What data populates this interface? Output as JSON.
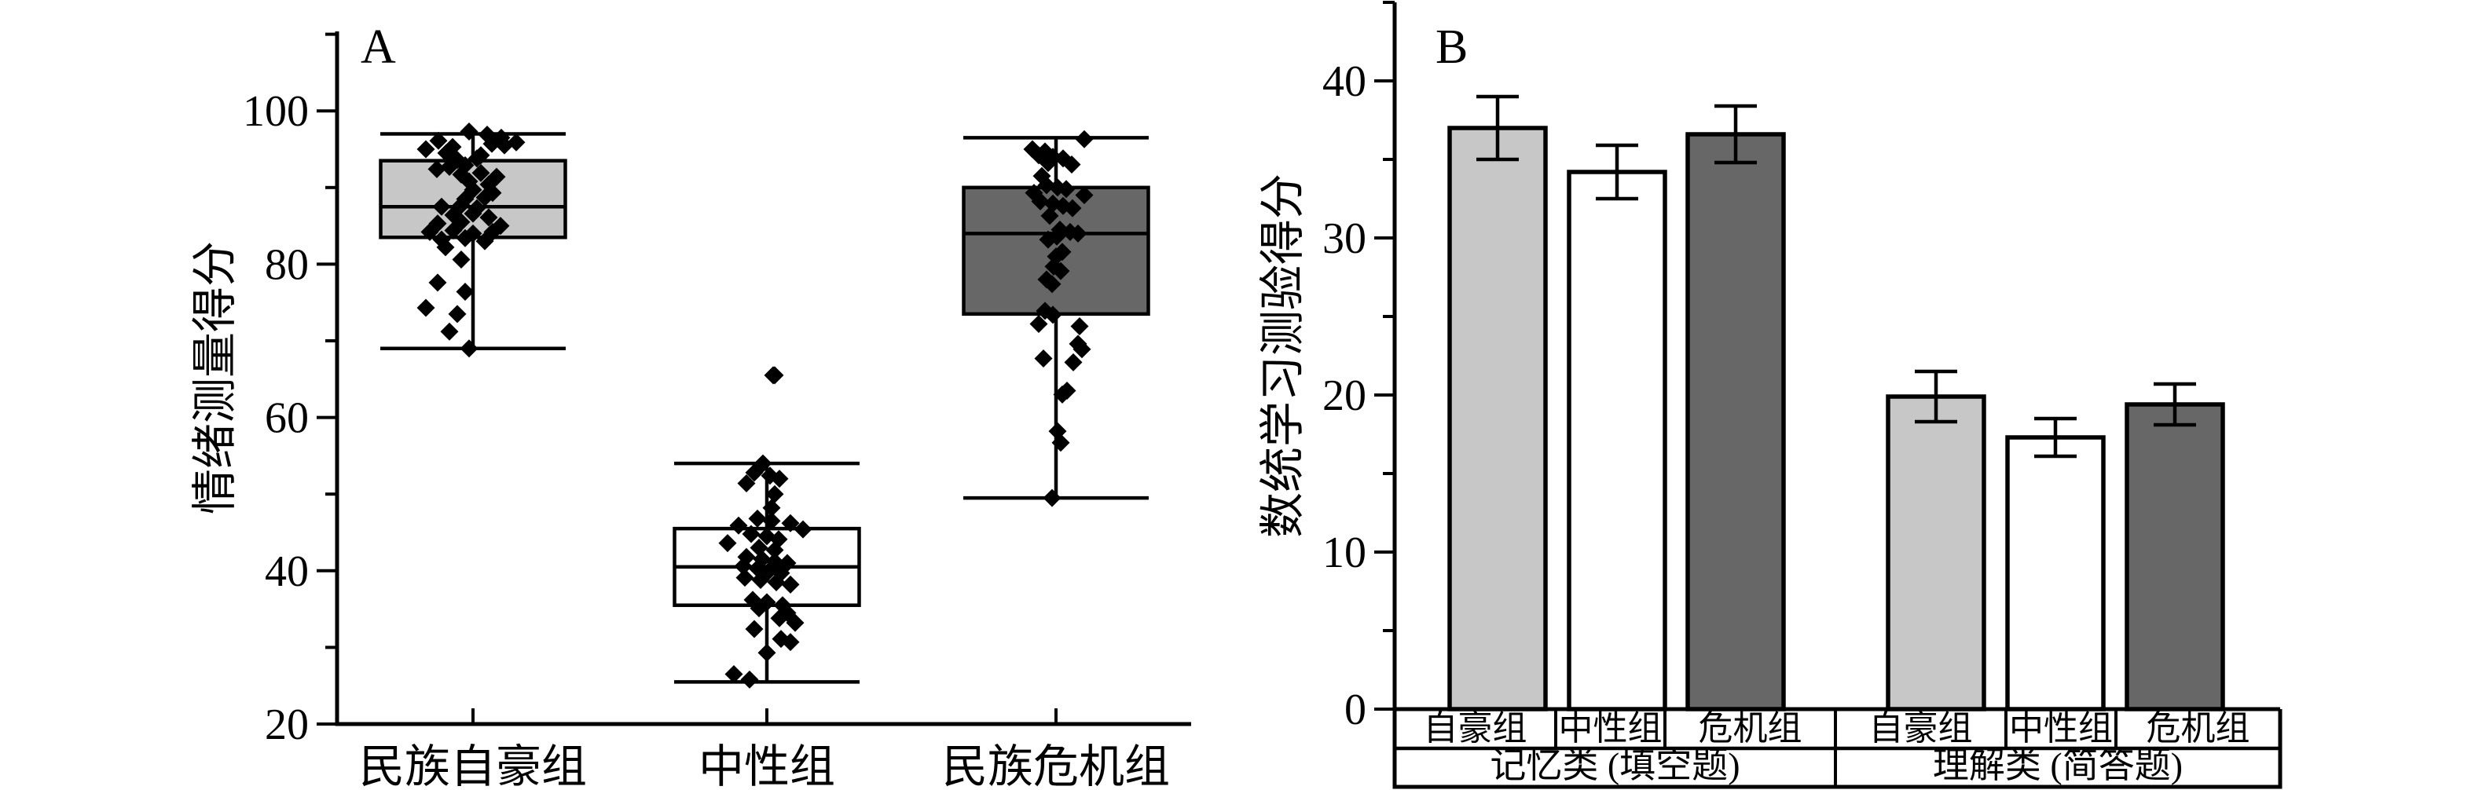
{
  "figure": {
    "background": "#ffffff",
    "stroke_color": "#000000",
    "palette": {
      "light_gray": "#c7c7c7",
      "white": "#ffffff",
      "dark_gray": "#676767"
    }
  },
  "chart_data": [
    {
      "type": "boxplot-scatter",
      "panel_label": "A",
      "title": "",
      "ylabel": "情绪测量得分",
      "xlabel": "",
      "ylim": [
        20,
        110
      ],
      "yticks_major": [
        20,
        40,
        60,
        80,
        100
      ],
      "yticks_minor": [
        30,
        50,
        70,
        90,
        110
      ],
      "grid": false,
      "categories": [
        "民族自豪组",
        "中性组",
        "民族危机组"
      ],
      "series": [
        {
          "label": "民族自豪组",
          "fill": "#c7c7c7",
          "box": {
            "whisker_low": 69,
            "q1": 83.5,
            "median": 87.5,
            "q3": 93.5,
            "whisker_high": 97,
            "outliers": []
          },
          "points": [
            [
              -5,
              97.3
            ],
            [
              18,
              96.9
            ],
            [
              36,
              96.5
            ],
            [
              -44,
              96.1
            ],
            [
              55,
              95.9
            ],
            [
              24,
              95.7
            ],
            [
              -26,
              95.3
            ],
            [
              -60,
              95
            ],
            [
              40,
              95.5
            ],
            [
              -34,
              94.5
            ],
            [
              10,
              94.2
            ],
            [
              -20,
              93.6
            ],
            [
              5,
              93.8
            ],
            [
              -30,
              92.7
            ],
            [
              -10,
              92.9
            ],
            [
              -46,
              92.4
            ],
            [
              -15,
              91.7
            ],
            [
              10,
              91.9
            ],
            [
              30,
              91.4
            ],
            [
              -5,
              90.8
            ],
            [
              20,
              90.4
            ],
            [
              0,
              89.7
            ],
            [
              25,
              89.3
            ],
            [
              -10,
              88.5
            ],
            [
              15,
              88.7
            ],
            [
              -40,
              87.5
            ],
            [
              -15,
              87.7
            ],
            [
              5,
              87.3
            ],
            [
              -25,
              86.4
            ],
            [
              0,
              86.6
            ],
            [
              20,
              86.1
            ],
            [
              -45,
              85.3
            ],
            [
              -15,
              85.5
            ],
            [
              35,
              85
            ],
            [
              -55,
              84.2
            ],
            [
              -25,
              84.4
            ],
            [
              0,
              84
            ],
            [
              25,
              84.2
            ],
            [
              -40,
              83.2
            ],
            [
              -10,
              83.4
            ],
            [
              15,
              83
            ],
            [
              -35,
              82.2
            ],
            [
              -15,
              80.6
            ],
            [
              -45,
              77.6
            ],
            [
              -10,
              76.4
            ],
            [
              -60,
              74.3
            ],
            [
              -20,
              73.5
            ],
            [
              -30,
              71.2
            ],
            [
              -5,
              69
            ]
          ]
        },
        {
          "label": "中性组",
          "fill": "#ffffff",
          "box": {
            "whisker_low": 25.5,
            "q1": 35.5,
            "median": 40.5,
            "q3": 45.5,
            "whisker_high": 54,
            "outliers": [
              65.5
            ]
          },
          "points": [
            [
              10,
              65.5
            ],
            [
              -5,
              54
            ],
            [
              -16,
              52.8
            ],
            [
              4,
              52.4
            ],
            [
              16,
              52
            ],
            [
              -26,
              51.4
            ],
            [
              10,
              50
            ],
            [
              6,
              48.2
            ],
            [
              -12,
              46.8
            ],
            [
              6,
              46.5
            ],
            [
              30,
              46.2
            ],
            [
              -36,
              45.9
            ],
            [
              46,
              45.4
            ],
            [
              -20,
              44.8
            ],
            [
              0,
              44.5
            ],
            [
              15,
              44.1
            ],
            [
              -50,
              43.6
            ],
            [
              -10,
              43
            ],
            [
              10,
              42.7
            ],
            [
              -26,
              41.8
            ],
            [
              -6,
              41.5
            ],
            [
              10,
              41.2
            ],
            [
              26,
              41
            ],
            [
              -30,
              40.6
            ],
            [
              -12,
              40.3
            ],
            [
              3,
              40
            ],
            [
              18,
              39.7
            ],
            [
              -28,
              39.1
            ],
            [
              -8,
              38.8
            ],
            [
              12,
              38.5
            ],
            [
              30,
              38.2
            ],
            [
              -18,
              36.2
            ],
            [
              0,
              35.9
            ],
            [
              20,
              35.5
            ],
            [
              -10,
              35.1
            ],
            [
              26,
              34.5
            ],
            [
              16,
              33.8
            ],
            [
              36,
              33.2
            ],
            [
              -16,
              32.4
            ],
            [
              18,
              31.1
            ],
            [
              30,
              30.7
            ],
            [
              0,
              29.3
            ],
            [
              -42,
              26.5
            ],
            [
              -22,
              25.8
            ]
          ]
        },
        {
          "label": "民族危机组",
          "fill": "#676767",
          "box": {
            "whisker_low": 49.5,
            "q1": 73.5,
            "median": 84,
            "q3": 90,
            "whisker_high": 96.5,
            "outliers": []
          },
          "points": [
            [
              36,
              96.3
            ],
            [
              -30,
              95
            ],
            [
              -14,
              94.7
            ],
            [
              -22,
              94.2
            ],
            [
              -4,
              94
            ],
            [
              9,
              93.8
            ],
            [
              -10,
              93.2
            ],
            [
              20,
              93
            ],
            [
              -18,
              91.5
            ],
            [
              -12,
              90.3
            ],
            [
              2,
              90
            ],
            [
              13,
              89.8
            ],
            [
              -28,
              89.3
            ],
            [
              36,
              89
            ],
            [
              -20,
              88.2
            ],
            [
              -4,
              87.9
            ],
            [
              9,
              87.6
            ],
            [
              21,
              87.3
            ],
            [
              -8,
              86.3
            ],
            [
              5,
              84.5
            ],
            [
              18,
              84.2
            ],
            [
              28,
              84
            ],
            [
              1,
              83.6
            ],
            [
              -10,
              83.2
            ],
            [
              8,
              81.6
            ],
            [
              0,
              81
            ],
            [
              -3,
              79.7
            ],
            [
              6,
              79.1
            ],
            [
              -12,
              78
            ],
            [
              -5,
              77.4
            ],
            [
              -14,
              73.9
            ],
            [
              -4,
              73.4
            ],
            [
              -22,
              72.2
            ],
            [
              30,
              71.9
            ],
            [
              28,
              69.6
            ],
            [
              33,
              68.9
            ],
            [
              -16,
              67.7
            ],
            [
              22,
              67.2
            ],
            [
              14,
              63.5
            ],
            [
              8,
              63
            ],
            [
              2,
              58.2
            ],
            [
              6,
              56.7
            ],
            [
              -5,
              49.5
            ]
          ]
        }
      ]
    },
    {
      "type": "bar",
      "panel_label": "B",
      "title": "",
      "ylabel": "数统学习测验得分",
      "xlabel": "",
      "ylim": [
        0,
        45
      ],
      "yticks_major": [
        0,
        10,
        20,
        30,
        40
      ],
      "yticks_minor": [
        5,
        15,
        25,
        35,
        45
      ],
      "grid": false,
      "legend": "none",
      "groups": [
        "记忆类 (填空题)",
        "理解类 (简答题)"
      ],
      "categories": [
        "自豪组",
        "中性组",
        "危机组",
        "自豪组",
        "中性组",
        "危机组"
      ],
      "bars": [
        {
          "group": 0,
          "label": "自豪组",
          "value": 37.0,
          "error": 2.0,
          "fill": "#c7c7c7"
        },
        {
          "group": 0,
          "label": "中性组",
          "value": 34.2,
          "error": 1.7,
          "fill": "#ffffff"
        },
        {
          "group": 0,
          "label": "危机组",
          "value": 36.6,
          "error": 1.8,
          "fill": "#676767"
        },
        {
          "group": 1,
          "label": "自豪组",
          "value": 19.9,
          "error": 1.6,
          "fill": "#c7c7c7"
        },
        {
          "group": 1,
          "label": "中性组",
          "value": 17.3,
          "error": 1.2,
          "fill": "#ffffff"
        },
        {
          "group": 1,
          "label": "危机组",
          "value": 19.4,
          "error": 1.3,
          "fill": "#676767"
        }
      ]
    }
  ]
}
